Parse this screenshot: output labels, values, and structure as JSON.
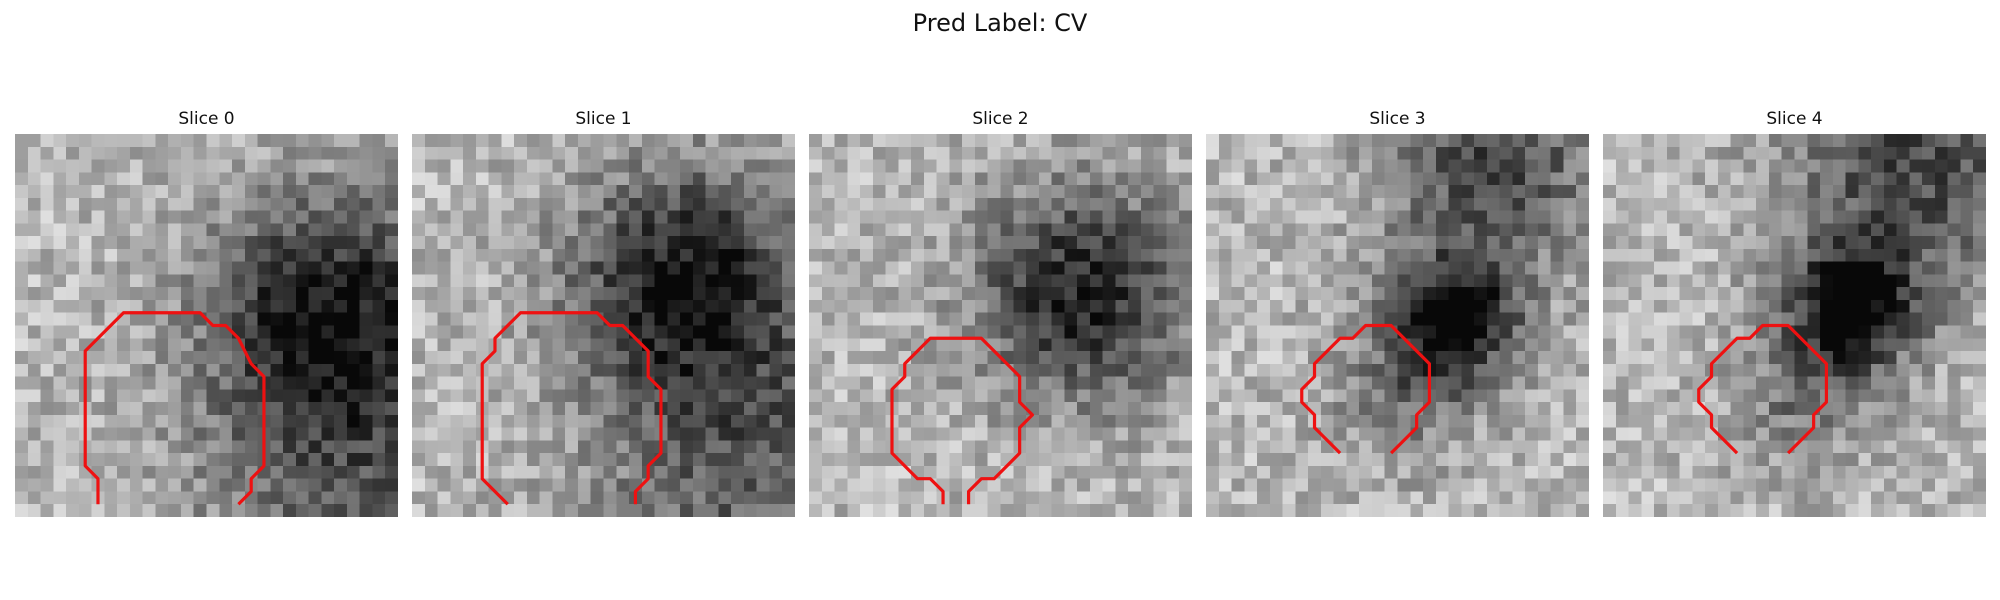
{
  "figure": {
    "title": "Pred Label: CV",
    "colors": {
      "contour": "#ee1111",
      "background": "#ffffff"
    },
    "panels": [
      {
        "title": "Slice 0",
        "dark_blobs": [
          [
            24,
            13,
            6.5,
            0.55
          ],
          [
            26,
            25,
            9,
            0.35
          ]
        ],
        "contour": [
          [
            6.5,
            29
          ],
          [
            6.5,
            27
          ],
          [
            5.5,
            26
          ],
          [
            5.5,
            17
          ],
          [
            8.5,
            14
          ],
          [
            14.5,
            14
          ],
          [
            15.5,
            15
          ],
          [
            16.5,
            15
          ],
          [
            17.5,
            16
          ],
          [
            18.5,
            18
          ],
          [
            19.5,
            19
          ],
          [
            19.5,
            26
          ],
          [
            18.5,
            27
          ],
          [
            18.5,
            28
          ],
          [
            17.5,
            29
          ]
        ]
      },
      {
        "title": "Slice 1",
        "dark_blobs": [
          [
            21,
            11,
            6.5,
            0.6
          ],
          [
            26,
            26,
            9,
            0.35
          ]
        ],
        "contour": [
          [
            7.5,
            29
          ],
          [
            6.5,
            28
          ],
          [
            5.5,
            27
          ],
          [
            5.5,
            18
          ],
          [
            6.5,
            17
          ],
          [
            6.5,
            16
          ],
          [
            8.5,
            14
          ],
          [
            14.5,
            14
          ],
          [
            15.5,
            15
          ],
          [
            16.5,
            15
          ],
          [
            18.5,
            17
          ],
          [
            18.5,
            19
          ],
          [
            19.5,
            20
          ],
          [
            19.5,
            25
          ],
          [
            18.5,
            26
          ],
          [
            18.5,
            27
          ],
          [
            17.5,
            28
          ],
          [
            17.5,
            29
          ]
        ]
      },
      {
        "title": "Slice 2",
        "dark_blobs": [
          [
            21,
            12,
            6,
            0.6
          ]
        ],
        "contour": [
          [
            10.5,
            29
          ],
          [
            10.5,
            28
          ],
          [
            9.5,
            27
          ],
          [
            8.5,
            27
          ],
          [
            6.5,
            25
          ],
          [
            6.5,
            20
          ],
          [
            7.5,
            19
          ],
          [
            7.5,
            18
          ],
          [
            9.5,
            16
          ],
          [
            13.5,
            16
          ],
          [
            16.5,
            19
          ],
          [
            16.5,
            21
          ],
          [
            17.5,
            22
          ],
          [
            16.5,
            23
          ],
          [
            16.5,
            25
          ],
          [
            14.5,
            27
          ],
          [
            13.5,
            27
          ],
          [
            12.5,
            28
          ],
          [
            12.5,
            29
          ]
        ]
      },
      {
        "title": "Slice 3",
        "dark_blobs": [
          [
            19,
            14,
            3.5,
            0.7
          ],
          [
            22,
            2,
            6,
            0.45
          ],
          [
            15,
            20,
            4,
            0.25
          ]
        ],
        "contour": [
          [
            10.5,
            25
          ],
          [
            8.5,
            23
          ],
          [
            8.5,
            22
          ],
          [
            7.5,
            21
          ],
          [
            7.5,
            20
          ],
          [
            8.5,
            19
          ],
          [
            8.5,
            18
          ],
          [
            10.5,
            16
          ],
          [
            11.5,
            16
          ],
          [
            12.5,
            15
          ],
          [
            14.5,
            15
          ],
          [
            17.5,
            18
          ],
          [
            17.5,
            21
          ],
          [
            16.5,
            22
          ],
          [
            16.5,
            23
          ],
          [
            14.5,
            25
          ]
        ]
      },
      {
        "title": "Slice 4",
        "dark_blobs": [
          [
            19,
            13,
            3.5,
            0.7
          ],
          [
            24,
            2,
            7,
            0.45
          ],
          [
            15,
            20,
            4,
            0.25
          ]
        ],
        "contour": [
          [
            10.5,
            25
          ],
          [
            8.5,
            23
          ],
          [
            8.5,
            22
          ],
          [
            7.5,
            21
          ],
          [
            7.5,
            20
          ],
          [
            8.5,
            19
          ],
          [
            8.5,
            18
          ],
          [
            10.5,
            16
          ],
          [
            11.5,
            16
          ],
          [
            12.5,
            15
          ],
          [
            14.5,
            15
          ],
          [
            17.5,
            18
          ],
          [
            17.5,
            21
          ],
          [
            16.5,
            22
          ],
          [
            16.5,
            23
          ],
          [
            14.5,
            25
          ]
        ]
      }
    ]
  }
}
